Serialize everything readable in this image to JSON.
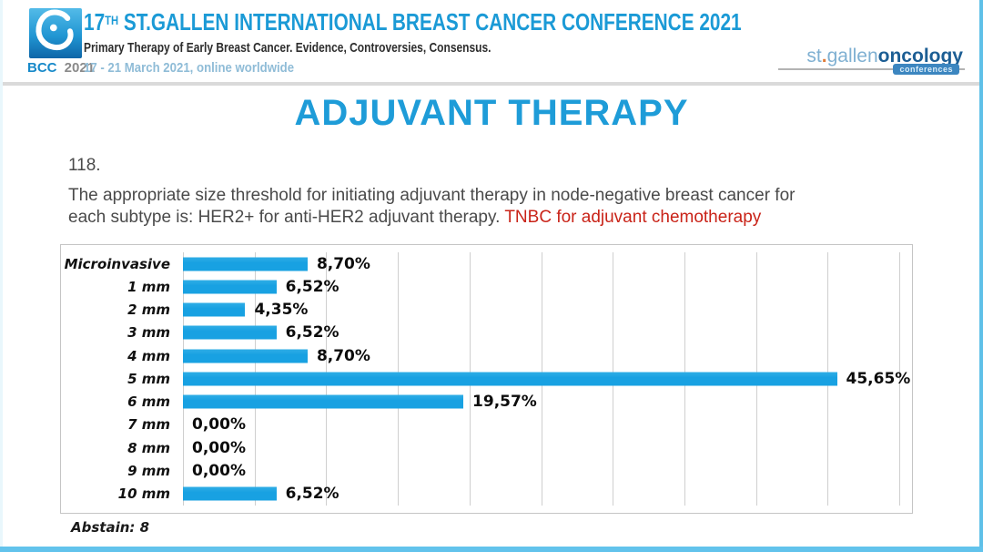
{
  "header": {
    "logo_bcc": "BCC",
    "logo_year": "2021",
    "title_num": "17",
    "title_sup": "TH",
    "title_rest": " ST.GALLEN INTERNATIONAL BREAST CANCER CONFERENCE 2021",
    "subtitle": "Primary Therapy of Early Breast Cancer. Evidence, Controversies, Consensus.",
    "dates": "17 - 21 March 2021, online worldwide",
    "right_logo_light1": "st",
    "right_logo_dot": ".",
    "right_logo_light2": "gallen",
    "right_logo_dark": "oncology",
    "right_logo_badge": "conferences"
  },
  "slide": {
    "title": "ADJUVANT THERAPY",
    "question_number": "118.",
    "question_line1": "The appropriate size threshold for initiating adjuvant therapy in node-negative breast cancer for",
    "question_line2_plain": "each subtype is: HER2+ for anti-HER2 adjuvant therapy. ",
    "question_line2_highlight": "TNBC for adjuvant chemotherapy",
    "abstain": "Abstain: 8"
  },
  "chart_data": {
    "type": "bar",
    "orientation": "horizontal",
    "title": "",
    "categories": [
      "Microinvasive",
      "1 mm",
      "2 mm",
      "3 mm",
      "4 mm",
      "5 mm",
      "6 mm",
      "7 mm",
      "8 mm",
      "9 mm",
      "10 mm"
    ],
    "values": [
      8.7,
      6.52,
      4.35,
      6.52,
      8.7,
      45.65,
      19.57,
      0.0,
      0.0,
      0.0,
      6.52
    ],
    "value_labels": [
      "8,70%",
      "6,52%",
      "4,35%",
      "6,52%",
      "8,70%",
      "45,65%",
      "19,57%",
      "0,00%",
      "0,00%",
      "0,00%",
      "6,52%"
    ],
    "xlim": [
      0,
      50
    ],
    "gridline_step": 5,
    "grid": true,
    "legend": false,
    "bar_color": "#18a1e2"
  },
  "colors": {
    "accent_blue": "#1e9cd8",
    "highlight_red": "#c92318",
    "bar_blue": "#18a1e2",
    "date_blue": "#8fbcd7",
    "frame_blue": "#62c3ec"
  }
}
